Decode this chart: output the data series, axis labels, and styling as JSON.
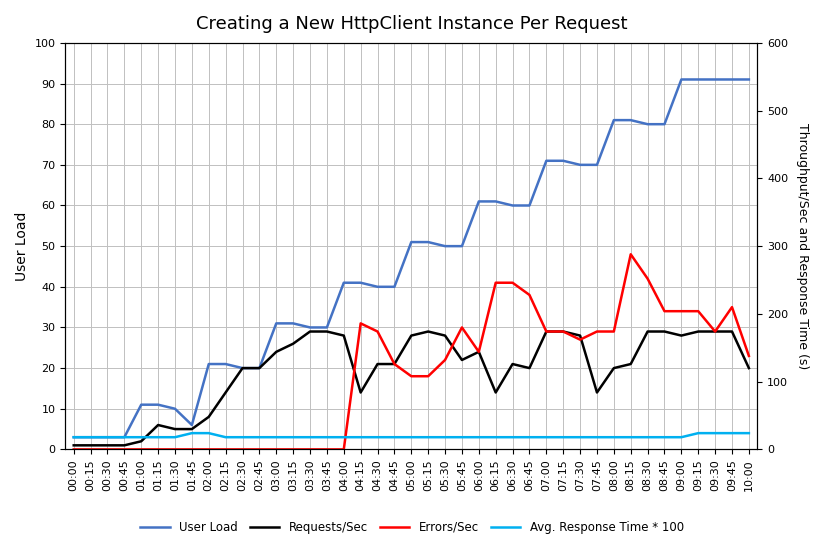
{
  "title": "Creating a New HttpClient Instance Per Request",
  "ylabel_left": "User Load",
  "ylabel_right": "Throughput/Sec and Response Time (s)",
  "x_labels": [
    "00:00",
    "00:15",
    "00:30",
    "00:45",
    "01:00",
    "01:15",
    "01:30",
    "01:45",
    "02:00",
    "02:15",
    "02:30",
    "02:45",
    "03:00",
    "03:15",
    "03:30",
    "03:45",
    "04:00",
    "04:15",
    "04:30",
    "04:45",
    "05:00",
    "05:15",
    "05:30",
    "05:45",
    "06:00",
    "06:15",
    "06:30",
    "06:45",
    "07:00",
    "07:15",
    "07:30",
    "07:45",
    "08:00",
    "08:15",
    "08:30",
    "08:45",
    "09:00",
    "09:15",
    "09:30",
    "09:45",
    "10:00"
  ],
  "user_load": [
    3,
    3,
    3,
    3,
    11,
    11,
    10,
    6,
    21,
    21,
    20,
    20,
    31,
    31,
    30,
    30,
    41,
    41,
    40,
    40,
    51,
    51,
    50,
    50,
    61,
    61,
    60,
    60,
    71,
    71,
    70,
    70,
    81,
    81,
    80,
    80,
    91,
    91,
    91,
    91,
    91
  ],
  "requests_per_sec": [
    1,
    1,
    1,
    1,
    2,
    6,
    5,
    5,
    8,
    14,
    20,
    20,
    24,
    26,
    29,
    29,
    28,
    14,
    21,
    21,
    28,
    29,
    28,
    22,
    24,
    14,
    21,
    20,
    29,
    29,
    28,
    14,
    20,
    21,
    29,
    29,
    28,
    29,
    29,
    29,
    20
  ],
  "errors_per_sec": [
    0,
    0,
    0,
    0,
    0,
    0,
    0,
    0,
    0,
    0,
    0,
    0,
    0,
    0,
    0,
    0,
    0,
    31,
    29,
    21,
    18,
    18,
    22,
    30,
    24,
    41,
    41,
    38,
    29,
    29,
    27,
    29,
    29,
    48,
    42,
    34,
    34,
    34,
    29,
    35,
    23
  ],
  "avg_response_time": [
    3,
    3,
    3,
    3,
    3,
    3,
    3,
    4,
    4,
    3,
    3,
    3,
    3,
    3,
    3,
    3,
    3,
    3,
    3,
    3,
    3,
    3,
    3,
    3,
    3,
    3,
    3,
    3,
    3,
    3,
    3,
    3,
    3,
    3,
    3,
    3,
    3,
    4,
    4,
    4,
    4
  ],
  "user_load_color": "#4472C4",
  "requests_color": "#000000",
  "errors_color": "#FF0000",
  "avg_response_color": "#00B0F0",
  "ylim_left": [
    0,
    100
  ],
  "ylim_right": [
    0,
    600
  ],
  "background_color": "#FFFFFF",
  "legend_labels": [
    "User Load",
    "Requests/Sec",
    "Errors/Sec",
    "Avg. Response Time * 100"
  ],
  "grid_color": "#C0C0C0",
  "title_fontsize": 13
}
